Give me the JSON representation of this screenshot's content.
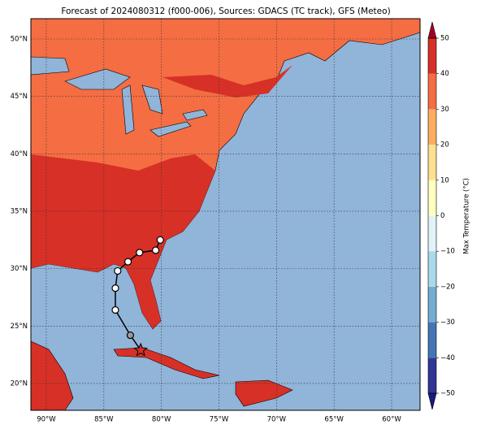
{
  "chart_data": {
    "type": "map",
    "title": "Forecast of 2024080312 (f000-006), Sources: GDACS (TC track), GFS (Meteo)",
    "xlim": [
      -91.34,
      -57.53
    ],
    "ylim": [
      17.66,
      51.77
    ],
    "xticks": [
      {
        "value": -90,
        "label": "90°W"
      },
      {
        "value": -85,
        "label": "85°W"
      },
      {
        "value": -80,
        "label": "80°W"
      },
      {
        "value": -75,
        "label": "75°W"
      },
      {
        "value": -70,
        "label": "70°W"
      },
      {
        "value": -65,
        "label": "65°W"
      },
      {
        "value": -60,
        "label": "60°W"
      }
    ],
    "yticks": [
      {
        "value": 20,
        "label": "20°N"
      },
      {
        "value": 25,
        "label": "25°N"
      },
      {
        "value": 30,
        "label": "30°N"
      },
      {
        "value": 35,
        "label": "35°N"
      },
      {
        "value": 40,
        "label": "40°N"
      },
      {
        "value": 45,
        "label": "45°N"
      },
      {
        "value": 50,
        "label": "50°N"
      }
    ],
    "grid": true,
    "track": {
      "lon": [
        -81.8,
        -82.7,
        -84.0,
        -84.0,
        -83.8,
        -82.9,
        -81.9,
        -80.5,
        -80.1
      ],
      "lat": [
        22.9,
        24.2,
        26.4,
        28.3,
        29.8,
        30.6,
        31.4,
        31.6,
        32.5
      ]
    },
    "colorbar": {
      "label": "Max Temperature (°C)",
      "ticks": [
        {
          "value": -50,
          "label": "−50"
        },
        {
          "value": -40,
          "label": "−40"
        },
        {
          "value": -30,
          "label": "−30"
        },
        {
          "value": -20,
          "label": "−20"
        },
        {
          "value": -10,
          "label": "−10"
        },
        0,
        10,
        20,
        30,
        40,
        50
      ],
      "colors": [
        "#313695",
        "#4575b4",
        "#74add1",
        "#abd9e9",
        "#e0f3f8",
        "#ffffbf",
        "#fee090",
        "#fdae61",
        "#f46d43",
        "#d73027"
      ]
    }
  }
}
